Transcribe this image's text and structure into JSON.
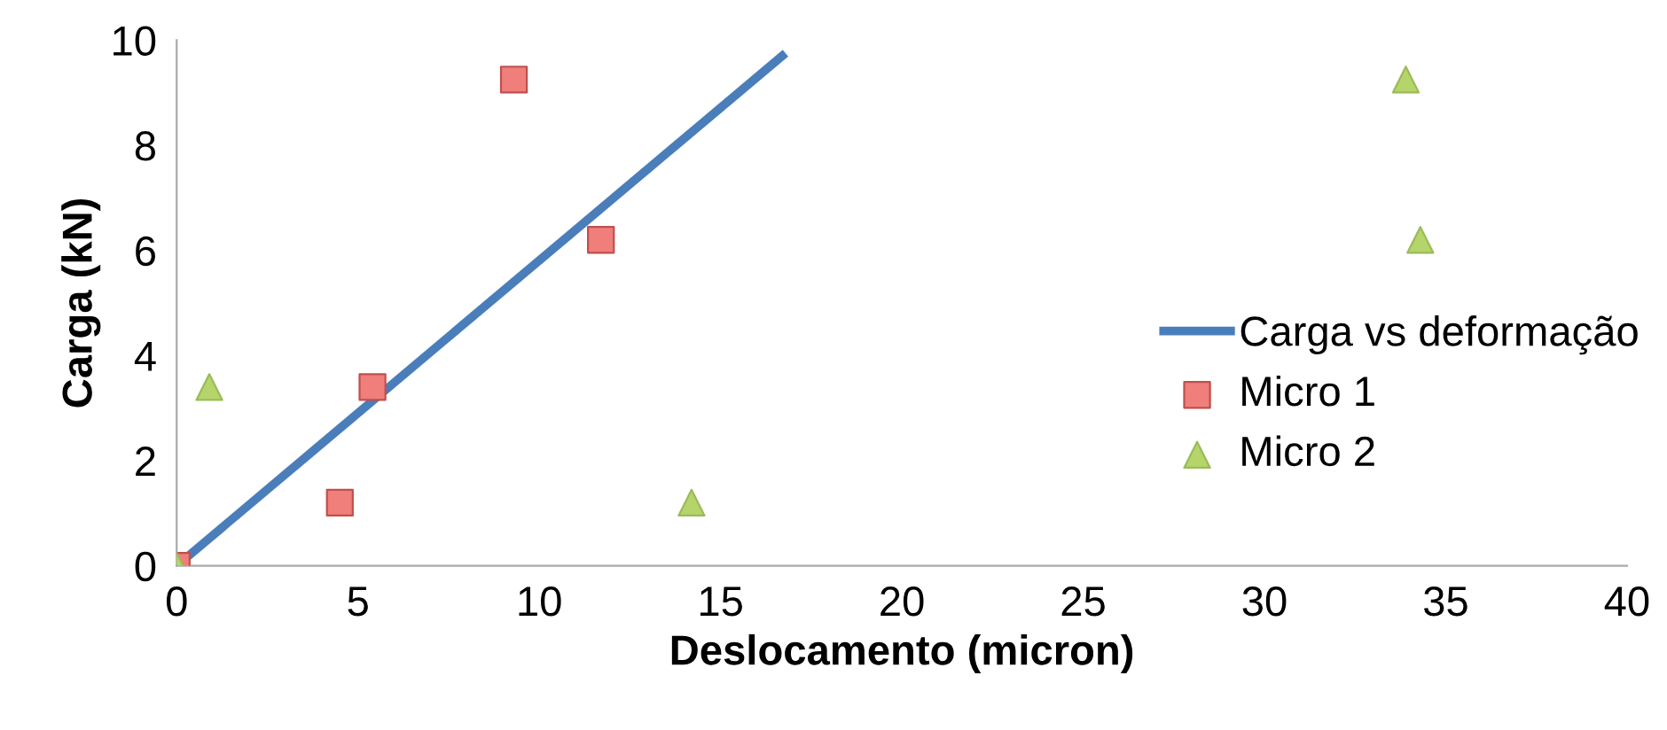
{
  "chart_data": {
    "type": "scatter",
    "xlabel": "Deslocamento (micron)",
    "ylabel": "Carga (kN)",
    "xlim": [
      0,
      40
    ],
    "ylim": [
      0,
      10
    ],
    "xticks": [
      0,
      5,
      10,
      15,
      20,
      25,
      30,
      35,
      40
    ],
    "yticks": [
      0,
      2,
      4,
      6,
      8,
      10
    ],
    "grid": false,
    "legend": "right",
    "series": [
      {
        "name": "Carga vs deformação",
        "type": "line",
        "color": "#4a7ebb",
        "marker": "none",
        "line_style": "solid",
        "x": [
          0,
          16.7
        ],
        "values": [
          0,
          9.7
        ]
      },
      {
        "name": "Micro 1",
        "color": "#f07f7c",
        "marker": "square",
        "x": [
          0,
          4.5,
          5.4,
          9.3,
          11.7
        ],
        "values": [
          0,
          1.2,
          3.4,
          9.25,
          6.2
        ]
      },
      {
        "name": "Micro 2",
        "color": "#b5d46a",
        "marker": "triangle",
        "x": [
          0,
          0.9,
          14.2,
          33.9,
          34.3
        ],
        "values": [
          0,
          3.4,
          1.2,
          9.25,
          6.2
        ]
      }
    ]
  }
}
